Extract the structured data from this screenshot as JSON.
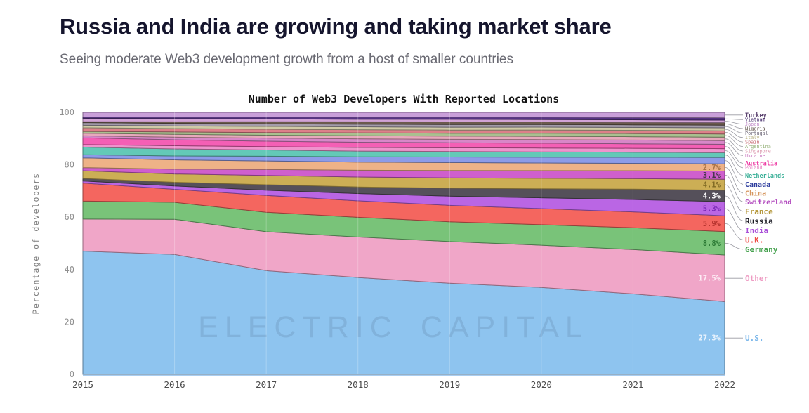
{
  "header": {
    "title": "Russia and India are growing and taking market share",
    "subtitle": "Seeing moderate Web3 development growth from a host of smaller countries"
  },
  "watermark": {
    "left": "ELECTRIC",
    "right": "CAPITAL"
  },
  "chart_data": {
    "type": "area",
    "stacked": true,
    "normalized_to_100": true,
    "title": "Number of Web3 Developers With Reported Locations",
    "xlabel": "",
    "ylabel": "Percentage of developers",
    "x": [
      "2015",
      "2016",
      "2017",
      "2018",
      "2019",
      "2020",
      "2021",
      "2022"
    ],
    "yticks": [
      "0",
      "20",
      "40",
      "60",
      "80",
      "100"
    ],
    "ylim": [
      0,
      100
    ],
    "grid": "faint",
    "legend_position": "right",
    "series_bottom_to_top": [
      {
        "name": "U.S.",
        "color": "#8ec4ef",
        "label_color": "#79b6ea",
        "values": [
          48,
          46,
          40,
          37,
          34.5,
          33,
          30.5,
          27.3
        ],
        "pct": "27.3%",
        "pct_color": "#e9f3fd"
      },
      {
        "name": "Other",
        "color": "#f0a6c8",
        "label_color": "#ee9cc3",
        "values": [
          12.5,
          13.5,
          15,
          15.5,
          15.8,
          16,
          16.8,
          17.5
        ],
        "pct": "17.5%",
        "pct_color": "#fdeef6"
      },
      {
        "name": "Germany",
        "color": "#79c379",
        "label_color": "#43a04c",
        "values": [
          7,
          6.5,
          7.5,
          7.5,
          7.5,
          7.8,
          8.3,
          8.8
        ],
        "pct": "8.8%",
        "pct_color": "#2c7a35"
      },
      {
        "name": "U.K.",
        "color": "#f4665f",
        "label_color": "#ef4b44",
        "values": [
          7,
          5,
          6.5,
          6.3,
          6.2,
          6.1,
          6,
          5.9
        ],
        "pct": "5.9%",
        "pct_color": "#b5332e"
      },
      {
        "name": "India",
        "color": "#ba66e4",
        "label_color": "#a94fd8",
        "values": [
          0.8,
          1.3,
          2,
          2.8,
          3.5,
          4.1,
          4.7,
          5.3
        ],
        "pct": "5.3%",
        "pct_color": "#7c2cb8"
      },
      {
        "name": "Russia",
        "color": "#55505a",
        "label_color": "#17171f",
        "values": [
          1,
          1.4,
          2.1,
          2.5,
          3,
          3.4,
          3.9,
          4.3
        ],
        "pct": "4.3%",
        "pct_color": "#ffffff"
      },
      {
        "name": "France",
        "color": "#ccae55",
        "label_color": "#b5983c",
        "values": [
          3,
          3.2,
          3.6,
          3.8,
          3.9,
          4,
          4,
          4.1
        ],
        "pct": "4.1%",
        "pct_color": "#806a24"
      },
      {
        "name": "Switzerland",
        "color": "#cf5fcd",
        "label_color": "#b44fc0",
        "values": [
          1.2,
          1.8,
          2.3,
          2.6,
          2.8,
          2.9,
          3,
          3.1
        ],
        "pct": "3.1%",
        "pct_color": "#46374a"
      },
      {
        "name": "China",
        "color": "#eeb287",
        "label_color": "#d6975f",
        "values": [
          3.8,
          3.6,
          3.3,
          3.1,
          3,
          2.9,
          2.8,
          2.7
        ],
        "pct": "2.7%",
        "pct_color": "#a97347"
      },
      {
        "name": "Canada",
        "color": "#8d9be8",
        "label_color": "#2d3d9e",
        "values": [
          1.2,
          1.5,
          1.8,
          2,
          2.1,
          2.2,
          2.3,
          2.4
        ]
      },
      {
        "name": "Netherlands",
        "color": "#63c9b7",
        "label_color": "#3bb098",
        "values": [
          3,
          2.7,
          2.4,
          2.2,
          2.1,
          2,
          1.9,
          1.8
        ]
      },
      {
        "name": "Poland",
        "color": "#ef93cd",
        "label_color": "#e783c2",
        "values": [
          1,
          1.2,
          1.3,
          1.4,
          1.4,
          1.5,
          1.5,
          1.5
        ]
      },
      {
        "name": "Australia",
        "color": "#f45fb5",
        "label_color": "#ee3fa6",
        "values": [
          2.6,
          2.3,
          2.1,
          2,
          1.9,
          1.8,
          1.7,
          1.6
        ]
      },
      {
        "name": "Ukraine",
        "color": "#d887c8",
        "label_color": "#c974bd",
        "values": [
          0.8,
          1,
          1.2,
          1.3,
          1.3,
          1.4,
          1.4,
          1.4
        ]
      },
      {
        "name": "Singapore",
        "color": "#e8a8bc",
        "label_color": "#da92a9",
        "values": [
          1,
          1.1,
          1.1,
          1.2,
          1.2,
          1.2,
          1.3,
          1.3
        ]
      },
      {
        "name": "Argentina",
        "color": "#a9c08f",
        "label_color": "#92af75",
        "values": [
          0.7,
          0.9,
          1,
          1.1,
          1.1,
          1.2,
          1.2,
          1.2
        ]
      },
      {
        "name": "Spain",
        "color": "#dd8089",
        "label_color": "#c4636c",
        "values": [
          1.4,
          1.3,
          1.3,
          1.2,
          1.2,
          1.2,
          1.2,
          1.2
        ]
      },
      {
        "name": "Italy",
        "color": "#d0caa6",
        "label_color": "#b9b283",
        "values": [
          1,
          1,
          1.1,
          1.1,
          1.1,
          1.1,
          1.1,
          1.1
        ]
      },
      {
        "name": "Portugal",
        "color": "#a49cab",
        "label_color": "#6e6878",
        "values": [
          1,
          1,
          1,
          1,
          1,
          1,
          1,
          1
        ]
      },
      {
        "name": "Nigeria",
        "color": "#6b5a4d",
        "label_color": "#4e4036",
        "values": [
          0.4,
          0.6,
          0.8,
          0.9,
          1,
          1,
          1,
          1
        ]
      },
      {
        "name": "Japan",
        "color": "#d2a3d6",
        "label_color": "#c18cc9",
        "values": [
          1.3,
          1.2,
          1.1,
          1,
          1,
          0.9,
          0.9,
          0.9
        ]
      },
      {
        "name": "Vietnam",
        "color": "#563283",
        "label_color": "#3f2567",
        "values": [
          0.5,
          0.6,
          0.7,
          0.8,
          0.8,
          0.9,
          0.9,
          0.9
        ]
      },
      {
        "name": "Turkey",
        "color": "#c99fd9",
        "label_color": "#5c4470",
        "values": [
          1.8,
          1.8,
          1.8,
          1.8,
          1.8,
          1.8,
          1.9,
          2
        ]
      }
    ]
  }
}
